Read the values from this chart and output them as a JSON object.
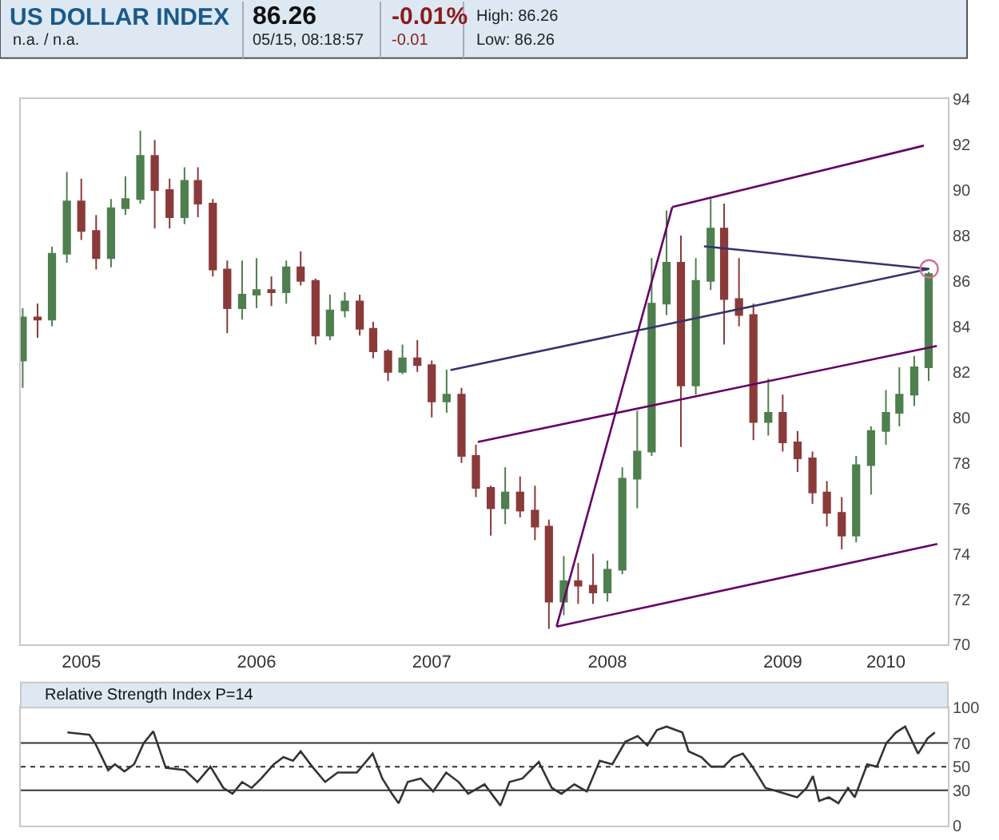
{
  "chart_data": [
    {
      "type": "candlestick",
      "title": "US DOLLAR INDEX",
      "annotations": [
        "86.26",
        "05/15, 08:18:57",
        "-0.01%",
        "-0.01",
        "High: 86.26",
        "Low: 86.26",
        "n.a. / n.a."
      ],
      "x": [
        "2005-03",
        "2005-04",
        "2005-05",
        "2005-06",
        "2005-07",
        "2005-08",
        "2005-09",
        "2005-10",
        "2005-11",
        "2005-12",
        "2006-01",
        "2006-02",
        "2006-03",
        "2006-04",
        "2006-05",
        "2006-06",
        "2006-07",
        "2006-08",
        "2006-09",
        "2006-10",
        "2006-11",
        "2006-12",
        "2007-01",
        "2007-02",
        "2007-03",
        "2007-04",
        "2007-05",
        "2007-06",
        "2007-07",
        "2007-08",
        "2007-09",
        "2007-10",
        "2007-11",
        "2007-12",
        "2008-01",
        "2008-02",
        "2008-03",
        "2008-04",
        "2008-05",
        "2008-06",
        "2008-07",
        "2008-08",
        "2008-09",
        "2008-10",
        "2008-11",
        "2008-12",
        "2009-01",
        "2009-02",
        "2009-03",
        "2009-04",
        "2009-05",
        "2009-06",
        "2009-07",
        "2009-08",
        "2009-09",
        "2009-10",
        "2009-11",
        "2009-12",
        "2010-01",
        "2010-02",
        "2010-03",
        "2010-04",
        "2010-05"
      ],
      "ohlc": [
        [
          82.5,
          84.8,
          81.3,
          84.4
        ],
        [
          84.4,
          85.0,
          83.5,
          84.3
        ],
        [
          84.3,
          87.5,
          84.0,
          87.2
        ],
        [
          87.2,
          90.8,
          86.8,
          89.5
        ],
        [
          89.5,
          90.5,
          87.8,
          88.2
        ],
        [
          88.2,
          88.9,
          86.5,
          87.0
        ],
        [
          87.0,
          89.6,
          86.6,
          89.2
        ],
        [
          89.2,
          90.6,
          88.9,
          89.6
        ],
        [
          89.6,
          92.6,
          89.4,
          91.5
        ],
        [
          91.5,
          92.2,
          88.3,
          90.0
        ],
        [
          90.0,
          90.5,
          88.3,
          88.8
        ],
        [
          88.8,
          91.0,
          88.5,
          90.4
        ],
        [
          90.4,
          91.0,
          88.8,
          89.4
        ],
        [
          89.4,
          89.6,
          86.2,
          86.5
        ],
        [
          86.5,
          86.9,
          83.7,
          84.8
        ],
        [
          84.8,
          86.9,
          84.3,
          85.4
        ],
        [
          85.4,
          87.0,
          84.8,
          85.6
        ],
        [
          85.6,
          86.2,
          84.9,
          85.5
        ],
        [
          85.5,
          86.9,
          85.0,
          86.6
        ],
        [
          86.6,
          87.3,
          85.8,
          86.0
        ],
        [
          86.0,
          86.1,
          83.2,
          83.6
        ],
        [
          83.6,
          85.4,
          83.4,
          84.7
        ],
        [
          84.7,
          85.5,
          84.4,
          85.1
        ],
        [
          85.1,
          85.4,
          83.6,
          83.9
        ],
        [
          83.9,
          84.2,
          82.6,
          82.9
        ],
        [
          82.9,
          83.0,
          81.6,
          82.0
        ],
        [
          82.0,
          83.2,
          81.9,
          82.6
        ],
        [
          82.6,
          83.4,
          82.0,
          82.3
        ],
        [
          82.3,
          82.5,
          80.0,
          80.7
        ],
        [
          80.7,
          82.1,
          80.2,
          81.0
        ],
        [
          81.0,
          81.3,
          78.0,
          78.3
        ],
        [
          78.3,
          78.8,
          76.5,
          76.9
        ],
        [
          76.9,
          77.0,
          74.8,
          76.0
        ],
        [
          76.0,
          77.8,
          75.3,
          76.7
        ],
        [
          76.7,
          77.4,
          75.6,
          75.9
        ],
        [
          75.9,
          77.0,
          74.6,
          75.2
        ],
        [
          75.2,
          75.5,
          70.7,
          71.9
        ],
        [
          71.9,
          73.9,
          71.3,
          72.8
        ],
        [
          72.8,
          73.6,
          71.8,
          72.6
        ],
        [
          72.6,
          74.0,
          71.8,
          72.3
        ],
        [
          72.3,
          73.7,
          71.9,
          73.3
        ],
        [
          73.3,
          77.8,
          73.1,
          77.3
        ],
        [
          77.3,
          80.3,
          76.0,
          78.5
        ],
        [
          78.5,
          87.0,
          78.3,
          85.0
        ],
        [
          85.0,
          89.1,
          84.5,
          86.8
        ],
        [
          86.8,
          88.0,
          78.7,
          81.4
        ],
        [
          81.4,
          87.0,
          81.0,
          86.0
        ],
        [
          86.0,
          89.6,
          85.6,
          88.3
        ],
        [
          88.3,
          89.4,
          83.2,
          85.2
        ],
        [
          85.2,
          87.0,
          84.0,
          84.5
        ],
        [
          84.5,
          85.0,
          79.0,
          79.8
        ],
        [
          79.8,
          81.7,
          79.2,
          80.2
        ],
        [
          80.2,
          81.0,
          78.5,
          78.9
        ],
        [
          78.9,
          79.4,
          77.6,
          78.2
        ],
        [
          78.2,
          78.5,
          76.2,
          76.7
        ],
        [
          76.7,
          77.2,
          75.2,
          75.8
        ],
        [
          75.8,
          76.5,
          74.2,
          74.8
        ],
        [
          74.8,
          78.3,
          74.5,
          77.9
        ],
        [
          77.9,
          79.6,
          76.6,
          79.4
        ],
        [
          79.4,
          81.2,
          78.8,
          80.2
        ],
        [
          80.2,
          82.2,
          79.6,
          81.0
        ],
        [
          81.0,
          82.7,
          80.5,
          82.2
        ],
        [
          82.2,
          86.4,
          81.6,
          86.3
        ]
      ],
      "colors": [
        "#4f7f4f",
        "#8b3a3a",
        "#4f7f4f",
        "#4f7f4f",
        "#8b3a3a",
        "#8b3a3a",
        "#4f7f4f",
        "#4f7f4f",
        "#4f7f4f",
        "#8b3a3a",
        "#8b3a3a",
        "#4f7f4f",
        "#8b3a3a",
        "#8b3a3a",
        "#8b3a3a",
        "#4f7f4f",
        "#4f7f4f",
        "#8b3a3a",
        "#4f7f4f",
        "#8b3a3a",
        "#8b3a3a",
        "#4f7f4f",
        "#4f7f4f",
        "#8b3a3a",
        "#8b3a3a",
        "#8b3a3a",
        "#4f7f4f",
        "#8b3a3a",
        "#8b3a3a",
        "#4f7f4f",
        "#8b3a3a",
        "#8b3a3a",
        "#8b3a3a",
        "#4f7f4f",
        "#8b3a3a",
        "#8b3a3a",
        "#8b3a3a",
        "#4f7f4f",
        "#8b3a3a",
        "#8b3a3a",
        "#4f7f4f",
        "#4f7f4f",
        "#4f7f4f",
        "#4f7f4f",
        "#4f7f4f",
        "#8b3a3a",
        "#4f7f4f",
        "#4f7f4f",
        "#8b3a3a",
        "#8b3a3a",
        "#8b3a3a",
        "#4f7f4f",
        "#8b3a3a",
        "#8b3a3a",
        "#8b3a3a",
        "#8b3a3a",
        "#8b3a3a",
        "#4f7f4f",
        "#4f7f4f",
        "#4f7f4f",
        "#4f7f4f",
        "#4f7f4f",
        "#4f7f4f"
      ],
      "series": [
        {
          "type": "line",
          "color": "#660066",
          "x": [
            "2008-11-13",
            "2010-04-21"
          ],
          "values": [
            89.25,
            91.95
          ]
        },
        {
          "type": "line",
          "color": "#660066",
          "x": [
            "2008-03-17",
            "2010-05-19"
          ],
          "values": [
            70.8,
            74.43
          ]
        },
        {
          "type": "line",
          "color": "#660066",
          "x": [
            "2007-10-05",
            "2010-05-18"
          ],
          "values": [
            78.92,
            83.14
          ]
        },
        {
          "type": "line",
          "color": "#33336e",
          "x": [
            "2007-08-09",
            "2010-05-02"
          ],
          "values": [
            82.08,
            86.53
          ]
        },
        {
          "type": "line",
          "color": "#660066",
          "x": [
            "2008-03-17",
            "2008-11-13"
          ],
          "values": [
            70.8,
            89.25
          ]
        },
        {
          "type": "line",
          "color": "#33336e",
          "x": [
            "2009-01-18",
            "2010-05-02"
          ],
          "values": [
            87.52,
            86.53
          ]
        },
        {
          "type": "scatter",
          "marker": "circle",
          "color": "#d07090",
          "x": [
            "2010-05-02"
          ],
          "values": [
            86.53
          ]
        }
      ],
      "xlim": [
        "2005-02-25",
        "2010-06-10"
      ],
      "xticks": [
        {
          "value": "2005-07-01",
          "label": "2005"
        },
        {
          "value": "2006-07-01",
          "label": "2006"
        },
        {
          "value": "2007-07-01",
          "label": "2007"
        },
        {
          "value": "2008-07-01",
          "label": "2008"
        },
        {
          "value": "2009-07-01",
          "label": "2009"
        },
        {
          "value": "2010-02-01",
          "label": "2010"
        }
      ],
      "ylim": [
        70,
        94
      ],
      "yticks": [
        70,
        72,
        74,
        76,
        78,
        80,
        82,
        84,
        86,
        88,
        90,
        92,
        94
      ]
    },
    {
      "type": "line",
      "title": "Relative Strength Index P=14",
      "series": [
        {
          "color": "#333333",
          "x": [
            "2005-06-02",
            "2005-07-18",
            "2005-07-31",
            "2005-08-26",
            "2005-09-09",
            "2005-09-29",
            "2005-10-19",
            "2005-11-08",
            "2005-11-28",
            "2005-12-24",
            "2006-02-02",
            "2006-02-28",
            "2006-03-27",
            "2006-04-23",
            "2006-05-12",
            "2006-06-01",
            "2006-06-21",
            "2006-07-11",
            "2006-08-06",
            "2006-08-26",
            "2006-09-15",
            "2006-10-01",
            "2006-10-25",
            "2006-11-21",
            "2006-12-17",
            "2007-01-26",
            "2007-02-28",
            "2007-03-20",
            "2007-04-09",
            "2007-04-23",
            "2007-05-12",
            "2007-06-08",
            "2007-07-04",
            "2007-07-31",
            "2007-08-26",
            "2007-09-15",
            "2007-10-19",
            "2007-11-21",
            "2007-12-10",
            "2008-01-06",
            "2008-02-09",
            "2008-03-07",
            "2008-03-27",
            "2008-04-23",
            "2008-05-19",
            "2008-06-15",
            "2008-07-11",
            "2008-08-07",
            "2008-09-02",
            "2008-09-22",
            "2008-10-12",
            "2008-11-01",
            "2008-12-04",
            "2008-12-17",
            "2009-01-13",
            "2009-02-02",
            "2009-02-28",
            "2009-03-20",
            "2009-04-09",
            "2009-04-29",
            "2009-05-26",
            "2009-06-21",
            "2009-07-31",
            "2009-08-20",
            "2009-09-02",
            "2009-09-15",
            "2009-10-05",
            "2009-10-25",
            "2009-11-14",
            "2009-11-28",
            "2009-12-24",
            "2010-01-13",
            "2010-02-02",
            "2010-02-22",
            "2010-03-13",
            "2010-04-09",
            "2010-04-29",
            "2010-05-14"
          ],
          "values": [
            79,
            77,
            69,
            47,
            52,
            46,
            52,
            70,
            80,
            49,
            47,
            37,
            50,
            32,
            27,
            37,
            32,
            40,
            52,
            58,
            55,
            63,
            50,
            37,
            45,
            45,
            61,
            40,
            27,
            19,
            37,
            40,
            29,
            45,
            37,
            27,
            35,
            17,
            37,
            40,
            54,
            32,
            27,
            35,
            29,
            55,
            52,
            71,
            76,
            68,
            81,
            84,
            79,
            63,
            58,
            50,
            50,
            58,
            61,
            50,
            32,
            29,
            24,
            32,
            42,
            21,
            24,
            19,
            32,
            24,
            52,
            50,
            70,
            79,
            84,
            61,
            74,
            79
          ]
        }
      ],
      "xlim": [
        "2005-02-25",
        "2010-06-10"
      ],
      "ylim": [
        0,
        100
      ],
      "yticks": [
        0,
        30,
        50,
        70,
        100
      ],
      "tick_labels": "y",
      "ref_lines": [
        {
          "axis": "y",
          "value": 70,
          "color": "#333333",
          "line_style": "solid"
        },
        {
          "axis": "y",
          "value": 50,
          "color": "#333333",
          "line_style": "dotted"
        },
        {
          "axis": "y",
          "value": 30,
          "color": "#333333",
          "line_style": "solid"
        }
      ]
    }
  ]
}
